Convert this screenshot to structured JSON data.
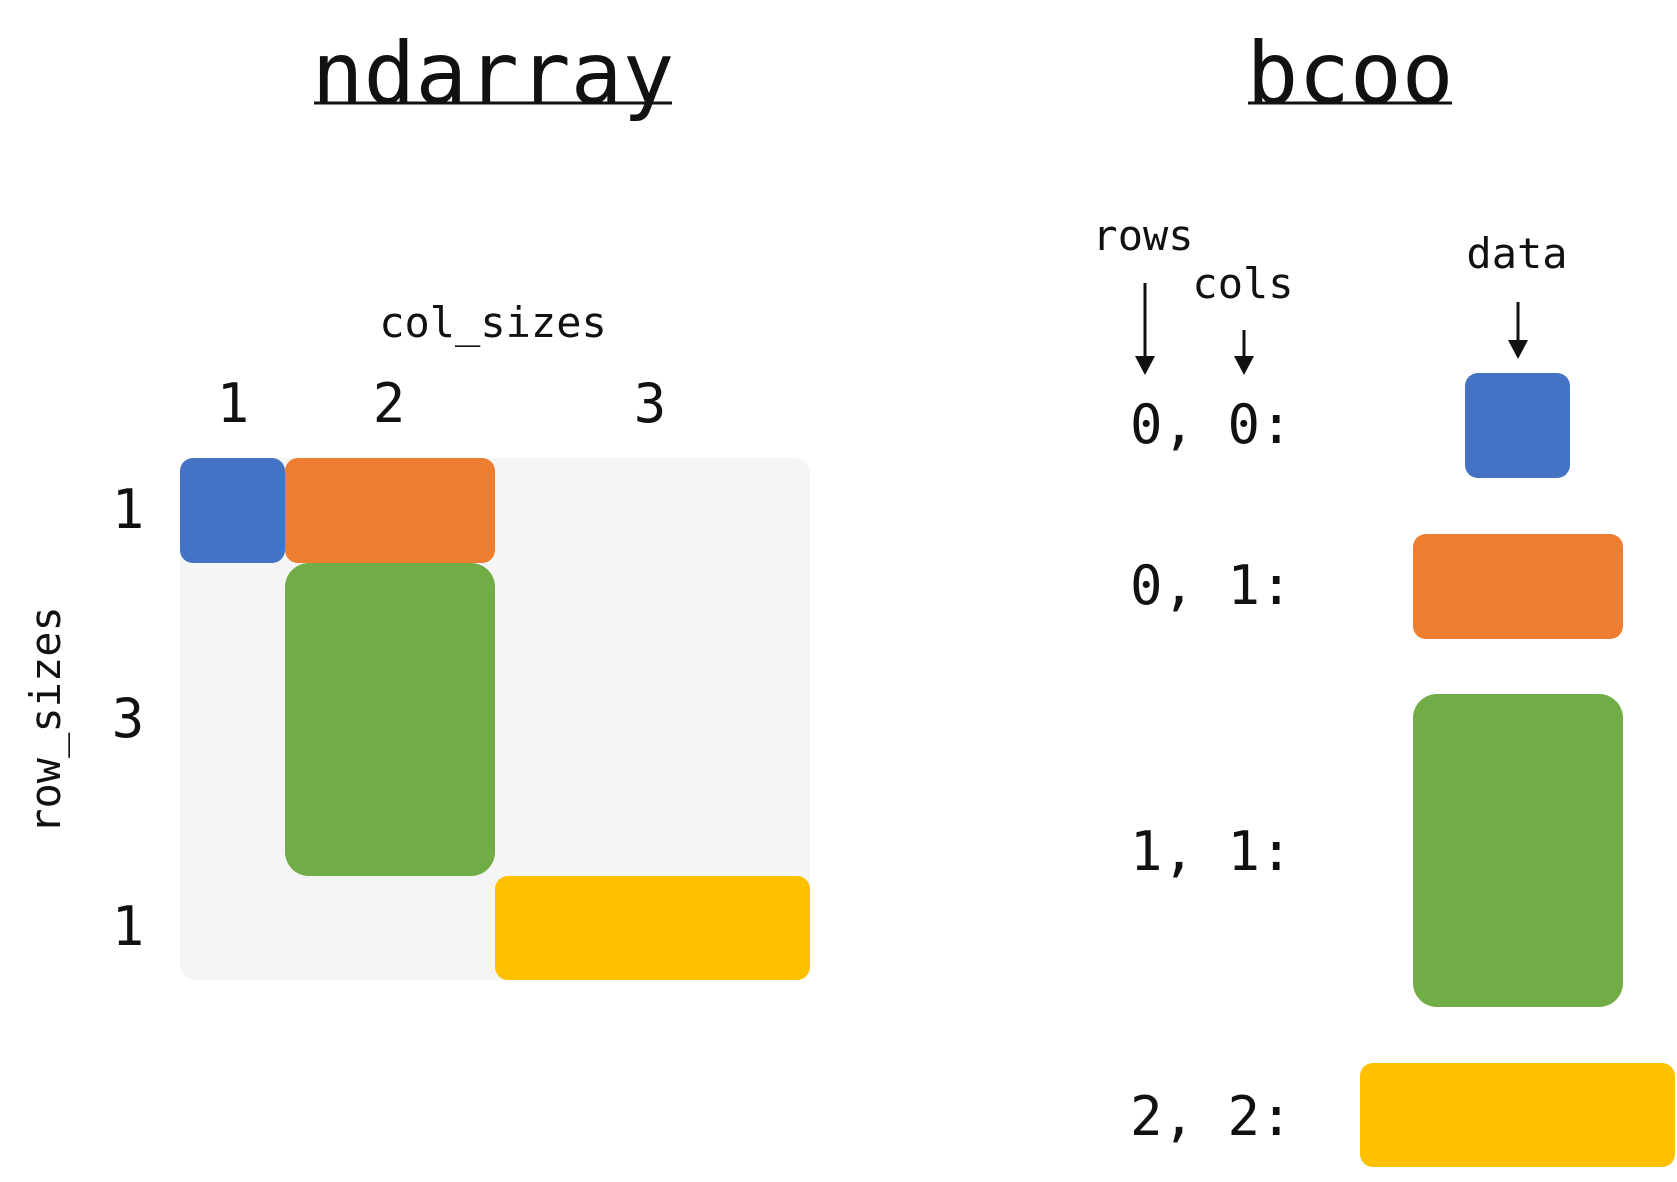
{
  "ndarray": {
    "title": "ndarray",
    "col_sizes_label": "col_sizes",
    "row_sizes_label": "row_sizes",
    "col_sizes": [
      "1",
      "2",
      "3"
    ],
    "row_sizes": [
      "1",
      "3",
      "1"
    ],
    "background_color": "#f5f5f5"
  },
  "bcoo": {
    "title": "bcoo",
    "rows_label": "rows",
    "cols_label": "cols",
    "data_label": "data",
    "entries": [
      {
        "coord": "0, 0:",
        "color": "#4472c4"
      },
      {
        "coord": "0, 1:",
        "color": "#ed7d31"
      },
      {
        "coord": "1, 1:",
        "color": "#70ad47"
      },
      {
        "coord": "2, 2:",
        "color": "#ffc000"
      }
    ]
  },
  "colors": {
    "blue": "#4472c4",
    "orange": "#ed7d31",
    "green": "#70ad47",
    "yellow": "#ffc000"
  }
}
